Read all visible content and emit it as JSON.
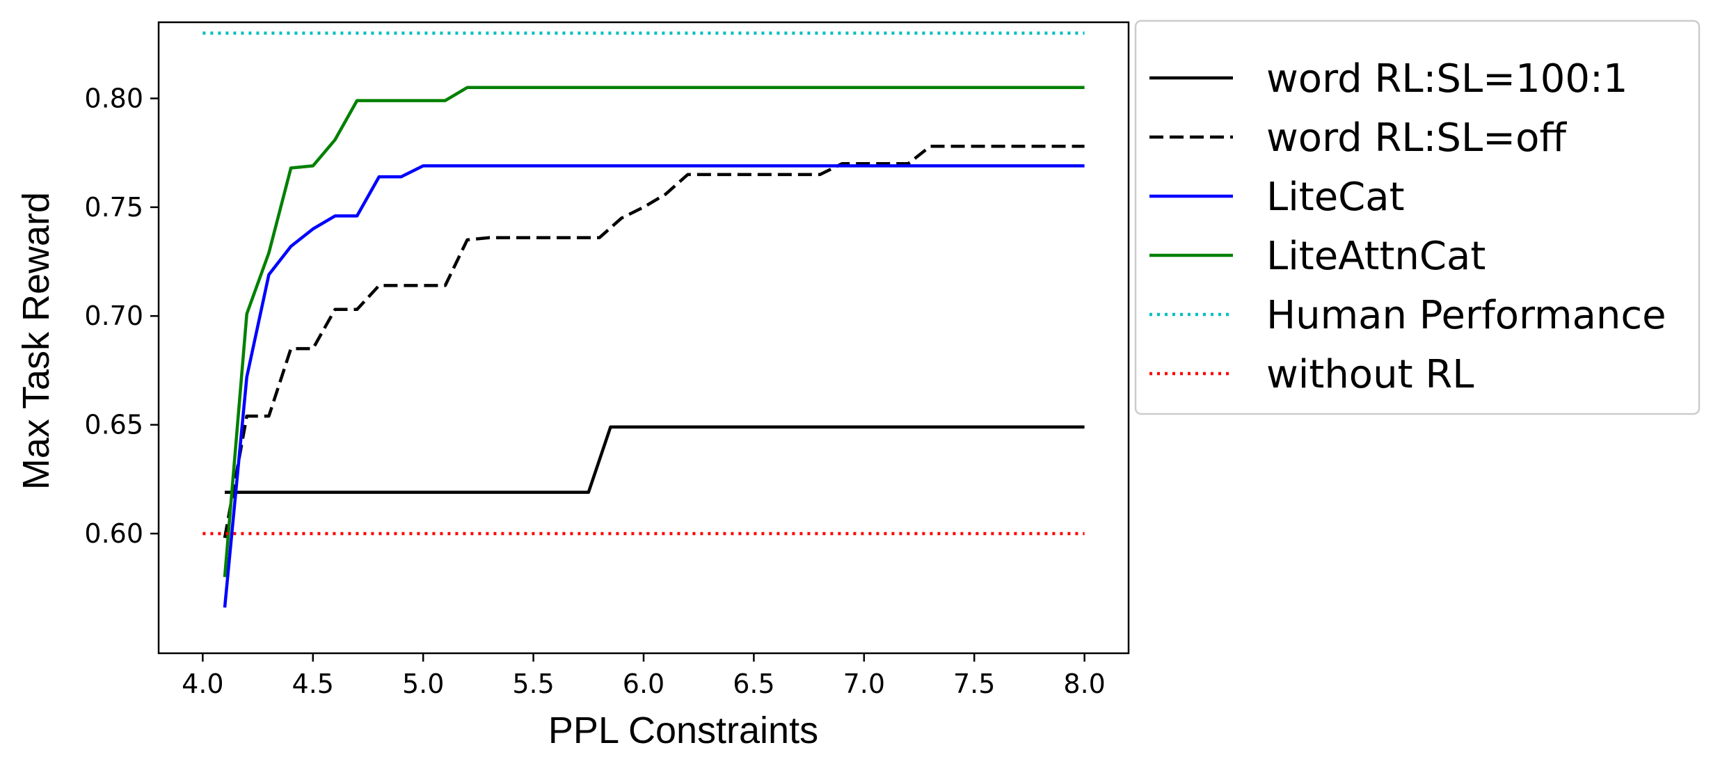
{
  "chart_data": {
    "type": "line",
    "title": "",
    "xlabel": "PPL Constraints",
    "ylabel": "Max Task Reward",
    "xlim": [
      3.8,
      8.2
    ],
    "ylim": [
      0.545,
      0.835
    ],
    "xticks": [
      "4.0",
      "4.5",
      "5.0",
      "5.5",
      "6.0",
      "6.5",
      "7.0",
      "7.5",
      "8.0"
    ],
    "yticks": [
      "0.60",
      "0.65",
      "0.70",
      "0.75",
      "0.80"
    ],
    "grid": false,
    "legend_position": "outside-right",
    "series": [
      {
        "name": "word RL:SL=100:1",
        "color": "#000000",
        "style": "solid",
        "x": [
          4.1,
          5.75,
          5.85,
          8.0
        ],
        "y": [
          0.619,
          0.619,
          0.649,
          0.649
        ]
      },
      {
        "name": "word RL:SL=off",
        "color": "#000000",
        "style": "dashed",
        "x": [
          4.1,
          4.2,
          4.3,
          4.4,
          4.5,
          4.6,
          4.7,
          4.8,
          4.9,
          5.0,
          5.1,
          5.2,
          5.3,
          5.4,
          5.5,
          5.6,
          5.7,
          5.8,
          5.9,
          6.0,
          6.1,
          6.2,
          6.3,
          6.4,
          6.5,
          6.6,
          6.7,
          6.8,
          6.9,
          7.0,
          7.1,
          7.2,
          7.3,
          8.0
        ],
        "y": [
          0.598,
          0.654,
          0.654,
          0.685,
          0.685,
          0.703,
          0.703,
          0.714,
          0.714,
          0.714,
          0.714,
          0.735,
          0.736,
          0.736,
          0.736,
          0.736,
          0.736,
          0.736,
          0.745,
          0.75,
          0.756,
          0.765,
          0.765,
          0.765,
          0.765,
          0.765,
          0.765,
          0.765,
          0.77,
          0.77,
          0.77,
          0.77,
          0.778,
          0.778
        ]
      },
      {
        "name": "LiteCat",
        "color": "#0000ff",
        "style": "solid",
        "x": [
          4.1,
          4.2,
          4.3,
          4.4,
          4.5,
          4.6,
          4.7,
          4.8,
          4.9,
          5.0,
          8.0
        ],
        "y": [
          0.566,
          0.672,
          0.719,
          0.732,
          0.74,
          0.746,
          0.746,
          0.764,
          0.764,
          0.769,
          0.769
        ]
      },
      {
        "name": "LiteAttnCat",
        "color": "#008000",
        "style": "solid",
        "x": [
          4.1,
          4.2,
          4.3,
          4.4,
          4.5,
          4.6,
          4.7,
          4.8,
          4.9,
          5.0,
          5.1,
          5.2,
          8.0
        ],
        "y": [
          0.58,
          0.701,
          0.729,
          0.768,
          0.769,
          0.781,
          0.799,
          0.799,
          0.799,
          0.799,
          0.799,
          0.805,
          0.805
        ]
      },
      {
        "name": "Human Performance",
        "color": "#00bfbf",
        "style": "dotted",
        "x": [
          4.0,
          8.0
        ],
        "y": [
          0.83,
          0.83
        ]
      },
      {
        "name": "without RL",
        "color": "#ff0000",
        "style": "dotted",
        "x": [
          4.0,
          8.0
        ],
        "y": [
          0.6,
          0.6
        ]
      }
    ]
  }
}
